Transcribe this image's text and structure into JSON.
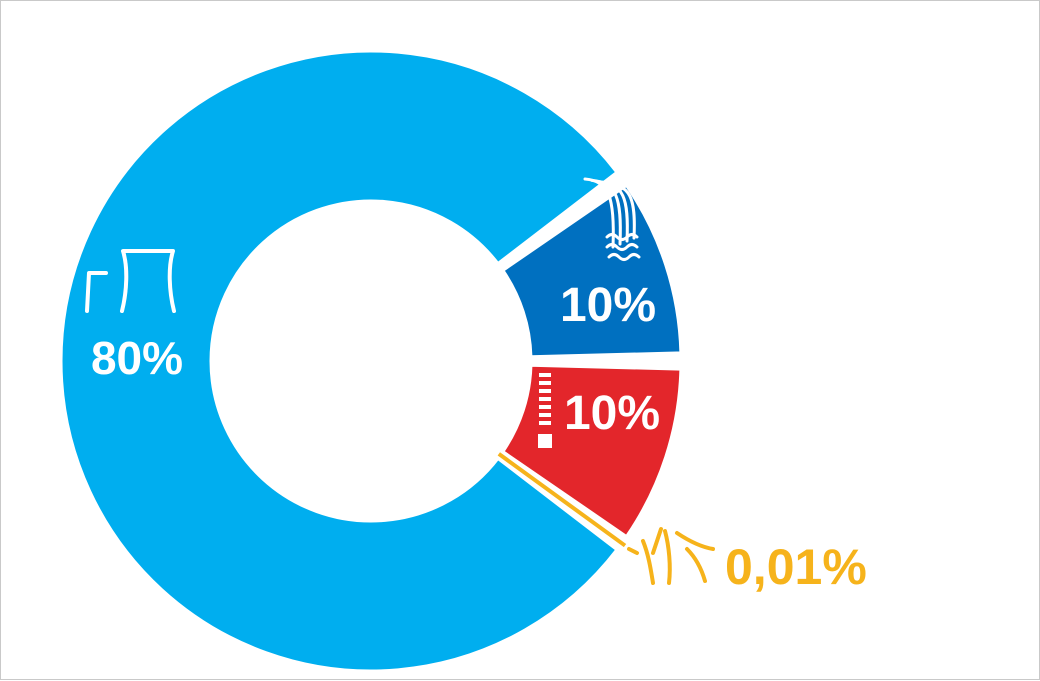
{
  "chart_data": {
    "type": "pie",
    "variant": "donut",
    "categories": [
      "",
      "",
      "",
      ""
    ],
    "values": [
      80,
      10,
      10,
      0.01
    ],
    "labels": [
      "80%",
      "10%",
      "10%",
      "0,01%"
    ],
    "icons": [
      "cooling-tower-icon",
      "hydro-dam-icon",
      "thermometer-icon",
      "sun-rays-icon"
    ],
    "colors": [
      "#00AEEF",
      "#0070C0",
      "#E3262B",
      "#F6B31B"
    ],
    "label_colors": [
      "#FFFFFF",
      "#FFFFFF",
      "#FFFFFF",
      "#F6B31B"
    ],
    "title": "",
    "legend": "none",
    "grid": false
  }
}
